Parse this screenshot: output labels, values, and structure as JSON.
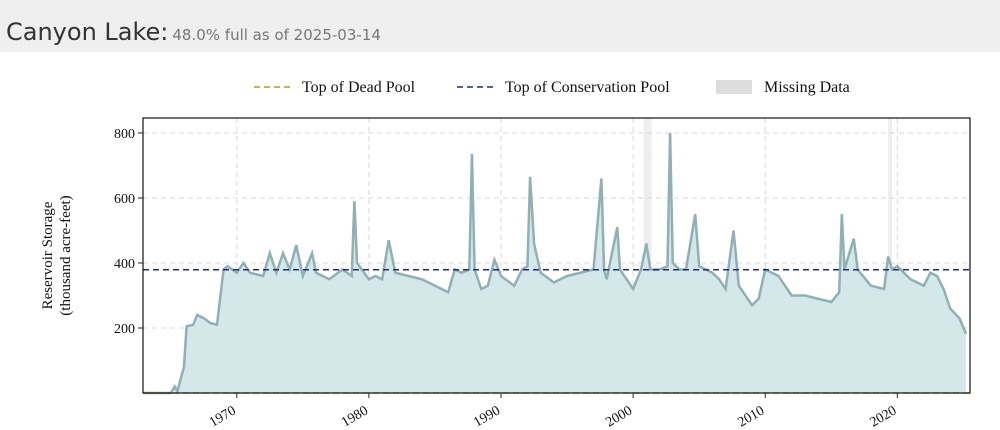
{
  "chart_data": {
    "type": "line",
    "title": "Canyon Lake:",
    "subtitle": "48.0% full as of 2025-03-14",
    "y_label": [
      "Reservoir Storage",
      "(thousand acre-feet)"
    ],
    "xlim": [
      1962.9,
      2025.5
    ],
    "xticks": [
      1970,
      1980,
      1990,
      2000,
      2010,
      2020
    ],
    "ylim": [
      0,
      846
    ],
    "yticks": [
      200,
      400,
      600,
      800
    ],
    "grid": true,
    "reference_lines": [
      {
        "name": "Top of Dead Pool",
        "color": "#b09a2a",
        "value": 0
      },
      {
        "name": "Top of Conservation Pool",
        "color": "#1f2a80",
        "value": 379
      }
    ],
    "missing_data": {
      "name": "Missing Data",
      "color": "#dddddd",
      "ranges": [
        [
          2000.8,
          2001.4
        ],
        [
          2019.3,
          2019.6
        ]
      ]
    },
    "series": [
      {
        "name": "Reservoir Storage",
        "color": "#8fb0b5",
        "fill": "#d4e8ea",
        "x": [
          1963,
          1965,
          1965.3,
          1965.5,
          1966,
          1966.2,
          1966.7,
          1967,
          1967.5,
          1968,
          1968.5,
          1969,
          1969.3,
          1970,
          1970.5,
          1971,
          1972,
          1972.5,
          1973,
          1973.5,
          1974,
          1974.5,
          1975,
          1975.7,
          1976,
          1977,
          1978,
          1978.7,
          1978.9,
          1979.1,
          1980,
          1980.5,
          1981,
          1981.5,
          1982,
          1983,
          1984,
          1985,
          1986,
          1986.5,
          1987,
          1987.6,
          1987.8,
          1988,
          1988.5,
          1989,
          1989.5,
          1990,
          1991,
          1991.6,
          1992,
          1992.2,
          1992.5,
          1993,
          1994,
          1995,
          1996,
          1997,
          1997.6,
          1997.8,
          1998,
          1998.8,
          1999,
          2000,
          2000.6,
          2001,
          2001.3,
          2002,
          2002.6,
          2002.8,
          2003,
          2003.5,
          2004,
          2004.7,
          2005,
          2006,
          2006.5,
          2007,
          2007.6,
          2008,
          2009,
          2009.5,
          2010,
          2011,
          2012,
          2013,
          2014,
          2015,
          2015.6,
          2015.8,
          2016,
          2016.7,
          2017,
          2018,
          2019,
          2019.3,
          2019.6,
          2020,
          2021,
          2022,
          2022.5,
          2023,
          2023.5,
          2024,
          2024.7,
          2025.2
        ],
        "values": [
          0,
          0,
          20,
          5,
          80,
          205,
          210,
          240,
          230,
          215,
          210,
          380,
          390,
          370,
          400,
          370,
          360,
          430,
          370,
          430,
          380,
          455,
          360,
          430,
          370,
          350,
          380,
          360,
          590,
          400,
          350,
          360,
          350,
          470,
          370,
          360,
          350,
          330,
          310,
          380,
          370,
          380,
          735,
          380,
          320,
          330,
          410,
          360,
          330,
          380,
          390,
          665,
          460,
          370,
          340,
          360,
          370,
          380,
          660,
          380,
          350,
          510,
          380,
          320,
          380,
          460,
          380,
          380,
          390,
          800,
          400,
          380,
          380,
          550,
          390,
          370,
          350,
          320,
          500,
          330,
          270,
          290,
          380,
          360,
          300,
          300,
          290,
          280,
          310,
          550,
          380,
          475,
          380,
          330,
          320,
          420,
          380,
          390,
          350,
          330,
          370,
          360,
          320,
          260,
          230,
          182
        ]
      }
    ]
  }
}
